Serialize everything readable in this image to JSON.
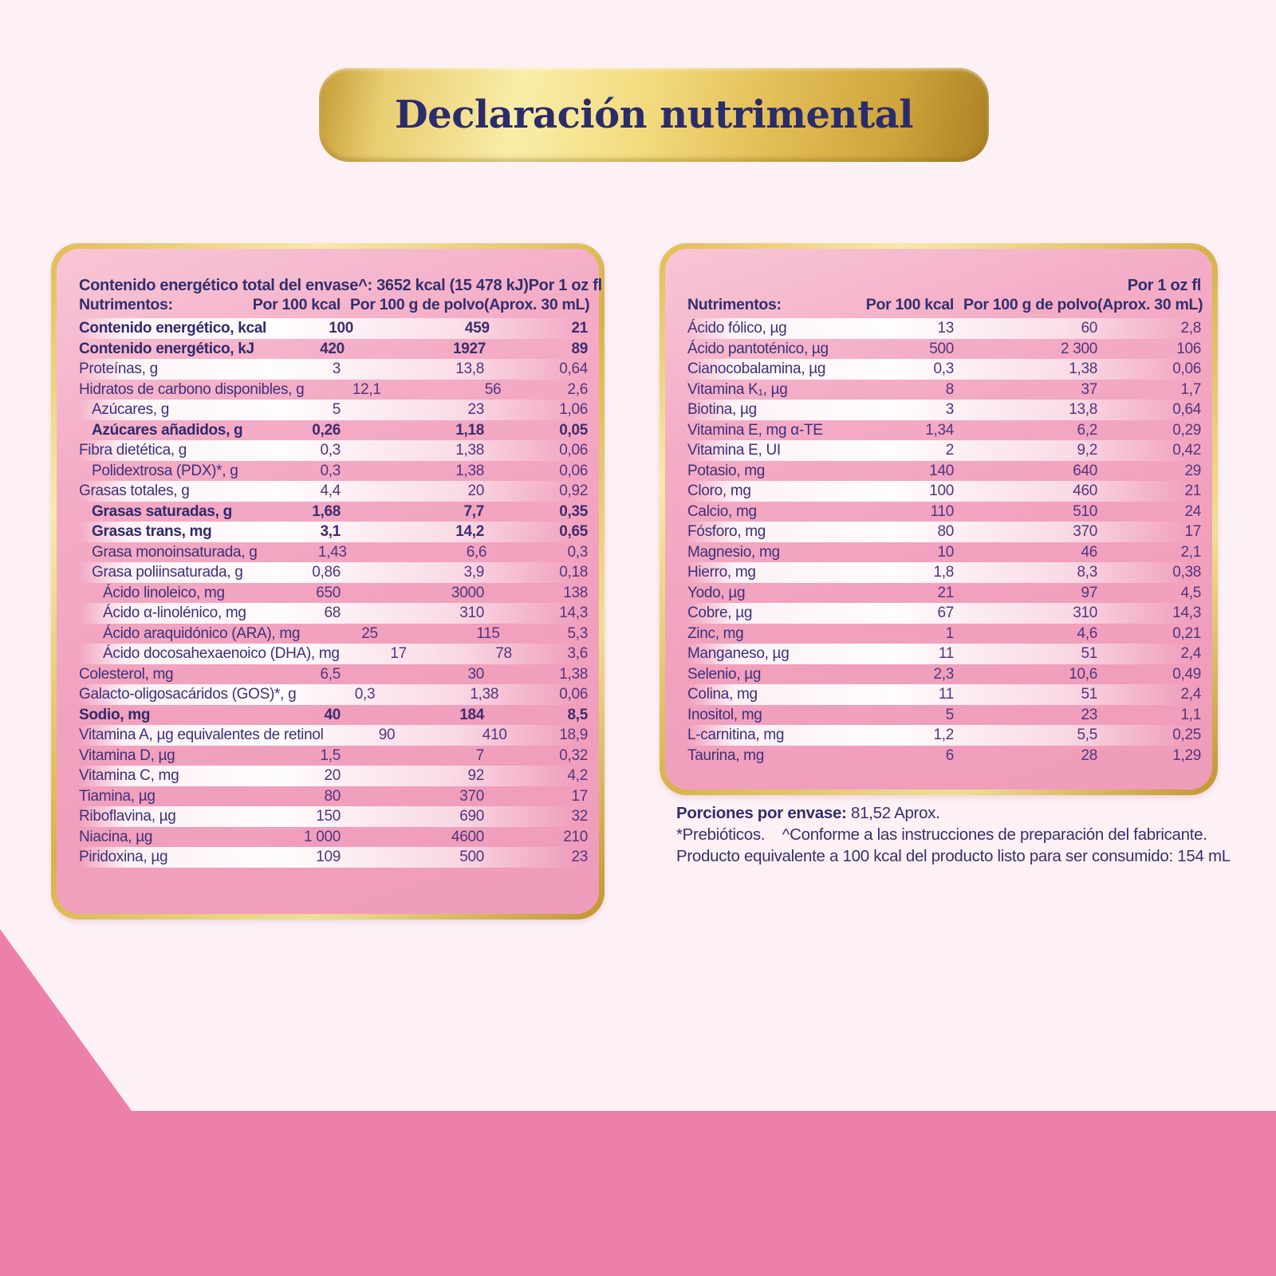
{
  "title": "Declaración nutrimental",
  "column_headers": {
    "nutrients": "Nutrimentos:",
    "per_100_kcal": "Por 100 kcal",
    "per_100_g_polvo": "Por 100 g de polvo",
    "per_1_oz_line1": "Por 1 oz fl",
    "per_1_oz_line2": "(Aprox. 30 mL)"
  },
  "left_table": {
    "energy_note": "Contenido energético total del envase^: 3652 kcal (15 478 kJ)",
    "rows": [
      {
        "label": "Contenido energético, kcal",
        "c1": "100",
        "c2": "459",
        "c3": "21",
        "bold": true
      },
      {
        "label": "Contenido energético, kJ",
        "c1": "420",
        "c2": "1927",
        "c3": "89",
        "bold": true
      },
      {
        "label": "Proteínas, g",
        "c1": "3",
        "c2": "13,8",
        "c3": "0,64"
      },
      {
        "label": "Hidratos de carbono disponibles, g",
        "c1": "12,1",
        "c2": "56",
        "c3": "2,6"
      },
      {
        "label": "Azúcares, g",
        "c1": "5",
        "c2": "23",
        "c3": "1,06",
        "indent": 1
      },
      {
        "label": "Azúcares añadidos, g",
        "c1": "0,26",
        "c2": "1,18",
        "c3": "0,05",
        "indent": 1,
        "bold": true
      },
      {
        "label": "Fibra dietética, g",
        "c1": "0,3",
        "c2": "1,38",
        "c3": "0,06"
      },
      {
        "label": "Polidextrosa (PDX)*, g",
        "c1": "0,3",
        "c2": "1,38",
        "c3": "0,06",
        "indent": 1
      },
      {
        "label": "Grasas totales, g",
        "c1": "4,4",
        "c2": "20",
        "c3": "0,92"
      },
      {
        "label": "Grasas saturadas, g",
        "c1": "1,68",
        "c2": "7,7",
        "c3": "0,35",
        "indent": 1,
        "bold": true
      },
      {
        "label": "Grasas trans, mg",
        "c1": "3,1",
        "c2": "14,2",
        "c3": "0,65",
        "indent": 1,
        "bold": true
      },
      {
        "label": "Grasa monoinsaturada, g",
        "c1": "1,43",
        "c2": "6,6",
        "c3": "0,3",
        "indent": 1
      },
      {
        "label": "Grasa poliinsaturada, g",
        "c1": "0,86",
        "c2": "3,9",
        "c3": "0,18",
        "indent": 1
      },
      {
        "label": "Ácido linoleico, mg",
        "c1": "650",
        "c2": "3000",
        "c3": "138",
        "indent": 2
      },
      {
        "label": "Ácido α-linolénico, mg",
        "c1": "68",
        "c2": "310",
        "c3": "14,3",
        "indent": 2
      },
      {
        "label": "Ácido araquidónico (ARA), mg",
        "c1": "25",
        "c2": "115",
        "c3": "5,3",
        "indent": 2
      },
      {
        "label": "Ácido docosahexaenoico (DHA), mg",
        "c1": "17",
        "c2": "78",
        "c3": "3,6",
        "indent": 2
      },
      {
        "label": "Colesterol, mg",
        "c1": "6,5",
        "c2": "30",
        "c3": "1,38"
      },
      {
        "label": "Galacto-oligosacáridos (GOS)*, g",
        "c1": "0,3",
        "c2": "1,38",
        "c3": "0,06"
      },
      {
        "label": "Sodio, mg",
        "c1": "40",
        "c2": "184",
        "c3": "8,5",
        "bold": true
      },
      {
        "label": "Vitamina A, µg equivalentes de retinol",
        "c1": "90",
        "c2": "410",
        "c3": "18,9"
      },
      {
        "label": "Vitamina D, µg",
        "c1": "1,5",
        "c2": "7",
        "c3": "0,32"
      },
      {
        "label": "Vitamina C, mg",
        "c1": "20",
        "c2": "92",
        "c3": "4,2"
      },
      {
        "label": "Tiamina, µg",
        "c1": "80",
        "c2": "370",
        "c3": "17"
      },
      {
        "label": "Riboflavina, µg",
        "c1": "150",
        "c2": "690",
        "c3": "32"
      },
      {
        "label": "Niacina, µg",
        "c1": "1 000",
        "c2": "4600",
        "c3": "210"
      },
      {
        "label": "Piridoxina, µg",
        "c1": "109",
        "c2": "500",
        "c3": "23"
      }
    ]
  },
  "right_table": {
    "rows": [
      {
        "label": "Ácido fólico, µg",
        "c1": "13",
        "c2": "60",
        "c3": "2,8"
      },
      {
        "label": "Ácido pantoténico, µg",
        "c1": "500",
        "c2": "2 300",
        "c3": "106"
      },
      {
        "label": "Cianocobalamina, µg",
        "c1": "0,3",
        "c2": "1,38",
        "c3": "0,06"
      },
      {
        "label": "Vitamina K₁, µg",
        "c1": "8",
        "c2": "37",
        "c3": "1,7"
      },
      {
        "label": "Biotina, µg",
        "c1": "3",
        "c2": "13,8",
        "c3": "0,64"
      },
      {
        "label": "Vitamina E, mg α-TE",
        "c1": "1,34",
        "c2": "6,2",
        "c3": "0,29"
      },
      {
        "label": "Vitamina E, UI",
        "c1": "2",
        "c2": "9,2",
        "c3": "0,42"
      },
      {
        "label": "Potasio, mg",
        "c1": "140",
        "c2": "640",
        "c3": "29"
      },
      {
        "label": "Cloro, mg",
        "c1": "100",
        "c2": "460",
        "c3": "21"
      },
      {
        "label": "Calcio, mg",
        "c1": "110",
        "c2": "510",
        "c3": "24"
      },
      {
        "label": "Fósforo, mg",
        "c1": "80",
        "c2": "370",
        "c3": "17"
      },
      {
        "label": "Magnesio, mg",
        "c1": "10",
        "c2": "46",
        "c3": "2,1"
      },
      {
        "label": "Hierro, mg",
        "c1": "1,8",
        "c2": "8,3",
        "c3": "0,38"
      },
      {
        "label": "Yodo, µg",
        "c1": "21",
        "c2": "97",
        "c3": "4,5"
      },
      {
        "label": "Cobre, µg",
        "c1": "67",
        "c2": "310",
        "c3": "14,3"
      },
      {
        "label": "Zinc, mg",
        "c1": "1",
        "c2": "4,6",
        "c3": "0,21"
      },
      {
        "label": "Manganeso, µg",
        "c1": "11",
        "c2": "51",
        "c3": "2,4"
      },
      {
        "label": "Selenio, µg",
        "c1": "2,3",
        "c2": "10,6",
        "c3": "0,49"
      },
      {
        "label": "Colina, mg",
        "c1": "11",
        "c2": "51",
        "c3": "2,4"
      },
      {
        "label": "Inositol, mg",
        "c1": "5",
        "c2": "23",
        "c3": "1,1"
      },
      {
        "label": "L-carnitina, mg",
        "c1": "1,2",
        "c2": "5,5",
        "c3": "0,25"
      },
      {
        "label": "Taurina, mg",
        "c1": "6",
        "c2": "28",
        "c3": "1,29"
      }
    ]
  },
  "footer": {
    "servings_label": "Porciones por envase:",
    "servings_value": "81,52 Aprox.",
    "line2": "*Prebióticos.    ^Conforme a las instrucciones de preparación del fabricante.",
    "line3": "Producto equivalente a 100 kcal del producto listo para ser consumido: 154 mL"
  },
  "colors": {
    "background": "#fdf1f5",
    "panel_pink": "#f2a5c1",
    "gold": "#d8b249",
    "navy_text": "#3c3179",
    "number_text": "#53357e",
    "title_navy": "#2b2c6a",
    "bottom_pink": "#ec80ab"
  }
}
